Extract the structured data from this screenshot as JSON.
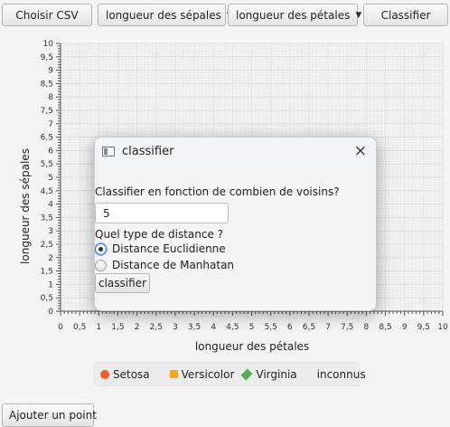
{
  "toolbar": {
    "choose_csv": "Choisir CSV",
    "x_axis_select": "longueur des sépales",
    "y_axis_select": "longueur des pétales",
    "classify": "Classifier"
  },
  "chart": {
    "xlabel": "longueur des pétales",
    "ylabel": "longueur des sépales"
  },
  "chart_data": {
    "type": "scatter",
    "xlabel": "longueur des pétales",
    "ylabel": "longueur des sépales",
    "xlim": [
      0,
      10
    ],
    "ylim": [
      0,
      10
    ],
    "x_ticks": [
      "0",
      "0,5",
      "1",
      "1,5",
      "2",
      "2,5",
      "3",
      "3,5",
      "4",
      "4,5",
      "5",
      "5,5",
      "6",
      "6,5",
      "7",
      "7,5",
      "8",
      "8,5",
      "9",
      "9,5",
      "10"
    ],
    "y_ticks": [
      "0",
      "0,5",
      "1",
      "1,5",
      "2",
      "2,5",
      "3",
      "3,5",
      "4",
      "4,5",
      "5",
      "5,5",
      "6",
      "6,5",
      "7",
      "7,5",
      "8",
      "8,5",
      "9",
      "9,5",
      "10"
    ],
    "grid": true,
    "series": [
      {
        "name": "Setosa",
        "points": []
      },
      {
        "name": "Versicolor",
        "points": []
      },
      {
        "name": "Virginia",
        "points": []
      },
      {
        "name": "inconnus",
        "points": []
      }
    ]
  },
  "legend": {
    "setosa": "Setosa",
    "versicolor": "Versicolor",
    "virginia": "Virginia",
    "unknown": "inconnus",
    "colors": {
      "setosa": "#f25c26",
      "versicolor": "#f6a524",
      "virginia": "#4caf50"
    }
  },
  "add_point": "Ajouter un point",
  "dialog": {
    "title": "classifier",
    "close_icon": "×",
    "question": "Classifier en fonction de combien de voisins?",
    "neighbors_value": "5",
    "distance_question": "Quel type de distance ?",
    "option_euclid": "Distance Euclidienne",
    "option_manhattan": "Distance de Manhatan",
    "selected": "Distance Euclidienne",
    "submit": "classifier"
  }
}
